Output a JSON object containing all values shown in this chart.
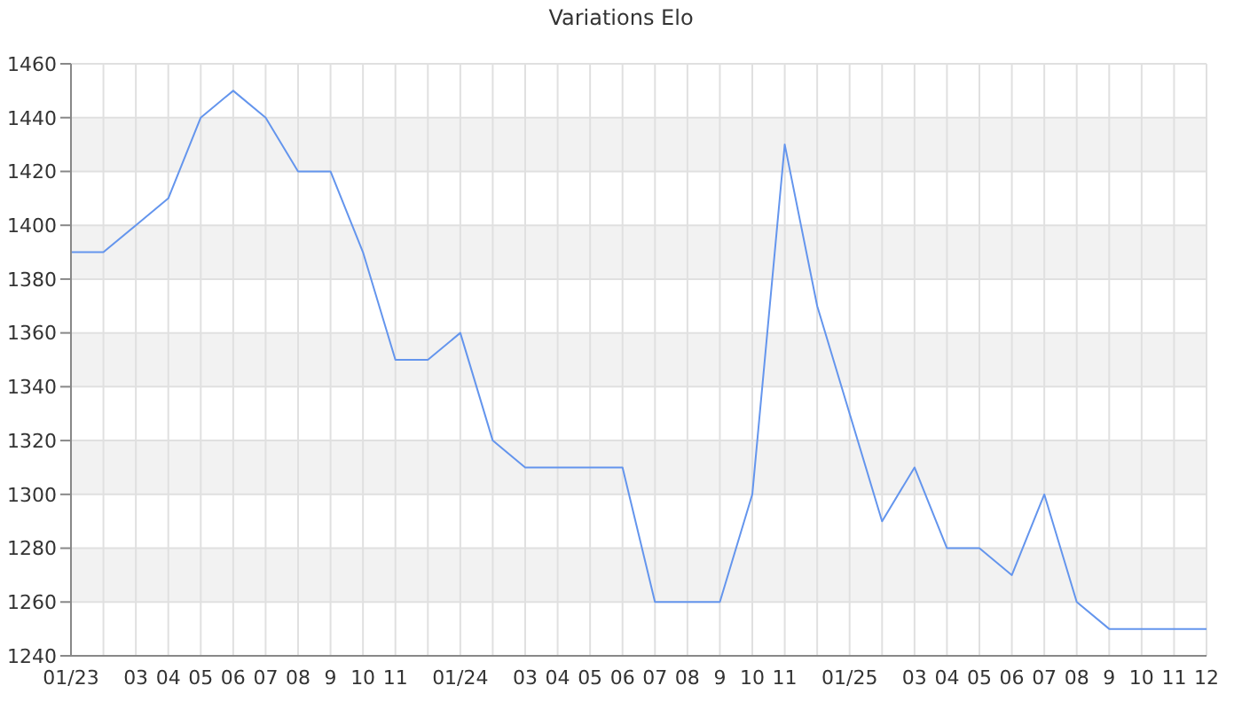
{
  "chart_data": {
    "type": "line",
    "title": "Variations Elo",
    "categories": [
      "01/23",
      null,
      "03",
      "04",
      "05",
      "06",
      "07",
      "08",
      "9",
      "10",
      "11",
      null,
      "01/24",
      null,
      "03",
      "04",
      "05",
      "06",
      "07",
      "08",
      "9",
      "10",
      "11",
      null,
      "01/25",
      null,
      "03",
      "04",
      "05",
      "06",
      "07",
      "08",
      "9",
      "10",
      "11",
      "12"
    ],
    "series": [
      {
        "color": "#6495ed",
        "values": [
          1390,
          1390,
          1400,
          1410,
          1440,
          1450,
          1440,
          1420,
          1420,
          1390,
          1350,
          1350,
          1360,
          1320,
          1310,
          1310,
          1310,
          1310,
          1260,
          1260,
          1260,
          1300,
          1430,
          1370,
          1330,
          1290,
          1310,
          1280,
          1280,
          1270,
          1300,
          1260,
          1250,
          1250,
          1250,
          1250
        ]
      }
    ],
    "ylim": [
      1240,
      1460
    ],
    "yticks": [
      1240,
      1260,
      1280,
      1300,
      1320,
      1340,
      1360,
      1380,
      1400,
      1420,
      1440,
      1460
    ],
    "grid": true,
    "legend": false,
    "marker": "none",
    "line_style": "solid"
  }
}
